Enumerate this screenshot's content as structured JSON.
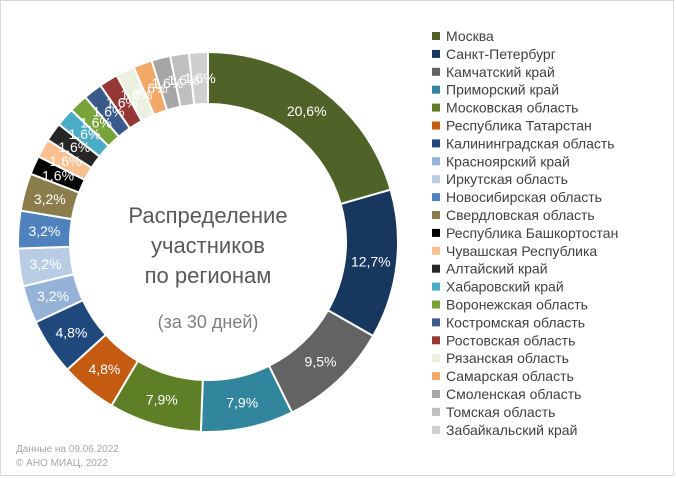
{
  "chart_data": {
    "type": "pie",
    "style": "donut",
    "center_title": [
      "Распределение",
      "участников",
      "по регионам"
    ],
    "center_subtitle": "(за 30 дней)",
    "legend_position": "right",
    "slices": [
      {
        "name": "Москва",
        "value": 20.6,
        "label": "20,6%",
        "color": "#4f6228"
      },
      {
        "name": "Санкт-Петербург",
        "value": 12.7,
        "label": "12,7%",
        "color": "#17375e"
      },
      {
        "name": "Камчатский край",
        "value": 9.5,
        "label": "9,5%",
        "color": "#636363"
      },
      {
        "name": "Приморский край",
        "value": 7.9,
        "label": "7,9%",
        "color": "#31859c"
      },
      {
        "name": "Московская область",
        "value": 7.9,
        "label": "7,9%",
        "color": "#5f7f27"
      },
      {
        "name": "Республика Татарстан",
        "value": 4.8,
        "label": "4,8%",
        "color": "#c55a11"
      },
      {
        "name": "Калининградская область",
        "value": 4.8,
        "label": "4,8%",
        "color": "#1f497d"
      },
      {
        "name": "Красноярский край",
        "value": 3.2,
        "label": "3,2%",
        "color": "#95b3d7"
      },
      {
        "name": "Иркутская область",
        "value": 3.2,
        "label": "3,2%",
        "color": "#b8cce4"
      },
      {
        "name": "Новосибирская область",
        "value": 3.2,
        "label": "3,2%",
        "color": "#4f81bd"
      },
      {
        "name": "Свердловская область",
        "value": 3.2,
        "label": "3,2%",
        "color": "#8a7d4b"
      },
      {
        "name": "Республика Башкортостан",
        "value": 1.6,
        "label": "1,6%",
        "color": "#000000"
      },
      {
        "name": "Чувашская Республика",
        "value": 1.6,
        "label": "1,6%",
        "color": "#fac090"
      },
      {
        "name": "Алтайский край",
        "value": 1.6,
        "label": "1,6%",
        "color": "#262626"
      },
      {
        "name": "Хабаровский край",
        "value": 1.6,
        "label": "1,6%",
        "color": "#4bacc6"
      },
      {
        "name": "Воронежская область",
        "value": 1.6,
        "label": "1,6%",
        "color": "#77a33a"
      },
      {
        "name": "Костромская область",
        "value": 1.6,
        "label": "1,6%",
        "color": "#3a5a8c"
      },
      {
        "name": "Ростовская область",
        "value": 1.6,
        "label": "1,6%",
        "color": "#953735"
      },
      {
        "name": "Рязанская область",
        "value": 1.6,
        "label": "1,6%",
        "color": "#ebf1de"
      },
      {
        "name": "Самарская область",
        "value": 1.6,
        "label": "1,6%",
        "color": "#f2a968"
      },
      {
        "name": "Смоленская область",
        "value": 1.6,
        "label": "1,6%",
        "color": "#a6a6a6"
      },
      {
        "name": "Томская область",
        "value": 1.6,
        "label": "1,6%",
        "color": "#bfbfbf"
      },
      {
        "name": "Забайкальский край",
        "value": 1.6,
        "label": "1,6%",
        "color": "#cfcfcf"
      }
    ]
  },
  "footer": {
    "date_line": "Данные на 09.06.2022",
    "copyright_line": "© АНО МИАЦ, 2022"
  }
}
